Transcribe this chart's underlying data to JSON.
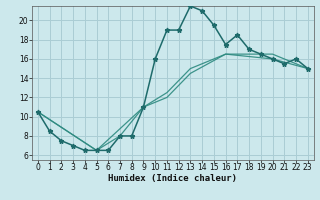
{
  "xlabel": "Humidex (Indice chaleur)",
  "background_color": "#cce8ec",
  "grid_color": "#aacdd4",
  "line_color": "#1e6b6b",
  "line_color2": "#2d8a80",
  "xlim": [
    -0.5,
    23.5
  ],
  "ylim": [
    5.5,
    21.5
  ],
  "xticks": [
    0,
    1,
    2,
    3,
    4,
    5,
    6,
    7,
    8,
    9,
    10,
    11,
    12,
    13,
    14,
    15,
    16,
    17,
    18,
    19,
    20,
    21,
    22,
    23
  ],
  "yticks": [
    6,
    8,
    10,
    12,
    14,
    16,
    18,
    20
  ],
  "line1_x": [
    0,
    1,
    2,
    3,
    4,
    5,
    6,
    7,
    8,
    9,
    10,
    11,
    12,
    13,
    14,
    15,
    16,
    17,
    18,
    19,
    20,
    21,
    22,
    23
  ],
  "line1_y": [
    10.5,
    8.5,
    7.5,
    7.0,
    6.5,
    6.5,
    6.5,
    8.0,
    8.0,
    11.0,
    16.0,
    19.0,
    19.0,
    21.5,
    21.0,
    19.5,
    17.5,
    18.5,
    17.0,
    16.5,
    16.0,
    15.5,
    16.0,
    15.0
  ],
  "line2_x": [
    0,
    5,
    7,
    9,
    11,
    13,
    16,
    20,
    23
  ],
  "line2_y": [
    10.5,
    6.5,
    8.0,
    11.0,
    12.0,
    14.5,
    16.5,
    16.0,
    15.0
  ],
  "line3_x": [
    0,
    5,
    9,
    11,
    13,
    16,
    20,
    23
  ],
  "line3_y": [
    10.5,
    6.5,
    11.0,
    12.5,
    15.0,
    16.5,
    16.5,
    15.0
  ],
  "xlabel_fontsize": 6.5,
  "tick_fontsize": 5.5
}
